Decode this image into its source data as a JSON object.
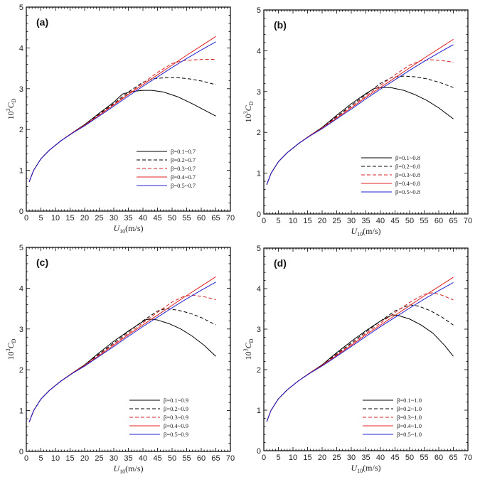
{
  "figure": {
    "description": "Drag coefficient 10^3 C_D versus wind speed U10 for different beta ranges, four panels"
  },
  "chart_data": [
    {
      "type": "line",
      "panel_label": "(a)",
      "xlabel_main": "U",
      "xlabel_sub": "10",
      "xlabel_unit": "(m/s)",
      "ylabel_prefix": "10",
      "ylabel_sup": "3",
      "ylabel_main": "C",
      "ylabel_sub": "D",
      "xlim": [
        0,
        70
      ],
      "ylim": [
        0,
        5
      ],
      "xticks": [
        0,
        5,
        10,
        15,
        20,
        25,
        30,
        35,
        40,
        45,
        50,
        55,
        60,
        65,
        70
      ],
      "yticks": [
        0,
        1,
        2,
        3,
        4,
        5
      ],
      "legend_position": "bottom-right",
      "series": [
        {
          "name": "β=0.1~0.7",
          "color": "#000000",
          "dash": "solid",
          "x": [
            1,
            2.5,
            5,
            8,
            12,
            16,
            20,
            25,
            30,
            33,
            36,
            40,
            43,
            47,
            52,
            57,
            61,
            65
          ],
          "y": [
            0.72,
            1.0,
            1.28,
            1.5,
            1.73,
            1.93,
            2.12,
            2.4,
            2.67,
            2.87,
            2.93,
            2.96,
            2.96,
            2.92,
            2.8,
            2.63,
            2.48,
            2.33
          ]
        },
        {
          "name": "β=0.2~0.7",
          "color": "#000000",
          "dash": "dashed",
          "x": [
            1,
            2.5,
            5,
            8,
            12,
            16,
            20,
            25,
            30,
            35,
            40,
            44,
            48,
            52,
            56,
            60,
            65
          ],
          "y": [
            0.72,
            1.0,
            1.28,
            1.5,
            1.73,
            1.93,
            2.12,
            2.38,
            2.64,
            2.92,
            3.16,
            3.25,
            3.27,
            3.27,
            3.24,
            3.19,
            3.1
          ]
        },
        {
          "name": "β=0.3~0.7",
          "color": "#d42020",
          "dash": "dashed",
          "x": [
            1,
            2.5,
            5,
            8,
            12,
            16,
            20,
            25,
            30,
            35,
            40,
            45,
            50,
            54,
            58,
            62,
            65
          ],
          "y": [
            0.72,
            1.0,
            1.28,
            1.5,
            1.73,
            1.93,
            2.11,
            2.36,
            2.62,
            2.88,
            3.14,
            3.4,
            3.62,
            3.69,
            3.71,
            3.72,
            3.72
          ]
        },
        {
          "name": "β=0.4~0.7",
          "color": "#e02020",
          "dash": "solid",
          "x": [
            1,
            2.5,
            5,
            8,
            12,
            16,
            20,
            25,
            30,
            35,
            40,
            45,
            50,
            55,
            60,
            65
          ],
          "y": [
            0.72,
            1.0,
            1.28,
            1.5,
            1.73,
            1.93,
            2.1,
            2.35,
            2.6,
            2.86,
            3.1,
            3.34,
            3.58,
            3.82,
            4.05,
            4.28
          ]
        },
        {
          "name": "β=0.5~0.7",
          "color": "#2020d0",
          "dash": "solid",
          "x": [
            1,
            2.5,
            5,
            8,
            12,
            16,
            20,
            25,
            30,
            35,
            40,
            45,
            50,
            55,
            60,
            65
          ],
          "y": [
            0.72,
            1.0,
            1.28,
            1.5,
            1.73,
            1.92,
            2.09,
            2.33,
            2.57,
            2.82,
            3.06,
            3.29,
            3.52,
            3.74,
            3.95,
            4.15
          ]
        }
      ]
    },
    {
      "type": "line",
      "panel_label": "(b)",
      "xlabel_main": "U",
      "xlabel_sub": "10",
      "xlabel_unit": "(m/s)",
      "ylabel_prefix": "10",
      "ylabel_sup": "3",
      "ylabel_main": "C",
      "ylabel_sub": "D",
      "xlim": [
        0,
        70
      ],
      "ylim": [
        0,
        5
      ],
      "xticks": [
        0,
        5,
        10,
        15,
        20,
        25,
        30,
        35,
        40,
        45,
        50,
        55,
        60,
        65,
        70
      ],
      "yticks": [
        0,
        1,
        2,
        3,
        4,
        5
      ],
      "legend_position": "bottom-right",
      "series": [
        {
          "name": "β=0.1~0.8",
          "color": "#000000",
          "dash": "solid",
          "x": [
            1,
            2.5,
            5,
            8,
            12,
            16,
            20,
            25,
            30,
            35,
            38,
            41,
            44,
            48,
            52,
            56,
            60,
            65
          ],
          "y": [
            0.72,
            1.0,
            1.28,
            1.5,
            1.73,
            1.93,
            2.12,
            2.42,
            2.7,
            2.95,
            3.08,
            3.1,
            3.09,
            3.03,
            2.92,
            2.78,
            2.6,
            2.33
          ]
        },
        {
          "name": "β=0.2~0.8",
          "color": "#000000",
          "dash": "dashed",
          "x": [
            1,
            2.5,
            5,
            8,
            12,
            16,
            20,
            25,
            30,
            35,
            40,
            44,
            48,
            52,
            56,
            60,
            65
          ],
          "y": [
            0.72,
            1.0,
            1.28,
            1.5,
            1.73,
            1.93,
            2.12,
            2.39,
            2.66,
            2.93,
            3.2,
            3.35,
            3.38,
            3.36,
            3.31,
            3.23,
            3.1
          ]
        },
        {
          "name": "β=0.3~0.8",
          "color": "#d42020",
          "dash": "dashed",
          "x": [
            1,
            2.5,
            5,
            8,
            12,
            16,
            20,
            25,
            30,
            35,
            40,
            45,
            50,
            54,
            57,
            61,
            65
          ],
          "y": [
            0.72,
            1.0,
            1.28,
            1.5,
            1.73,
            1.93,
            2.11,
            2.37,
            2.63,
            2.89,
            3.15,
            3.41,
            3.65,
            3.76,
            3.78,
            3.76,
            3.72
          ]
        },
        {
          "name": "β=0.4~0.8",
          "color": "#e02020",
          "dash": "solid",
          "x": [
            1,
            2.5,
            5,
            8,
            12,
            16,
            20,
            25,
            30,
            35,
            40,
            45,
            50,
            55,
            60,
            65
          ],
          "y": [
            0.72,
            1.0,
            1.28,
            1.5,
            1.73,
            1.93,
            2.1,
            2.35,
            2.6,
            2.86,
            3.1,
            3.34,
            3.58,
            3.82,
            4.05,
            4.28
          ]
        },
        {
          "name": "β=0.5~0.8",
          "color": "#2020d0",
          "dash": "solid",
          "x": [
            1,
            2.5,
            5,
            8,
            12,
            16,
            20,
            25,
            30,
            35,
            40,
            45,
            50,
            55,
            60,
            65
          ],
          "y": [
            0.72,
            1.0,
            1.28,
            1.5,
            1.73,
            1.92,
            2.09,
            2.33,
            2.57,
            2.82,
            3.06,
            3.29,
            3.52,
            3.74,
            3.95,
            4.15
          ]
        }
      ]
    },
    {
      "type": "line",
      "panel_label": "(c)",
      "xlabel_main": "U",
      "xlabel_sub": "10",
      "xlabel_unit": "(m/s)",
      "ylabel_prefix": "10",
      "ylabel_sup": "3",
      "ylabel_main": "C",
      "ylabel_sub": "D",
      "xlim": [
        0,
        70
      ],
      "ylim": [
        0,
        5
      ],
      "xticks": [
        0,
        5,
        10,
        15,
        20,
        25,
        30,
        35,
        40,
        45,
        50,
        55,
        60,
        65,
        70
      ],
      "yticks": [
        0,
        1,
        2,
        3,
        4,
        5
      ],
      "legend_position": "bottom-right",
      "series": [
        {
          "name": "β=0.1~0.9",
          "color": "#000000",
          "dash": "solid",
          "x": [
            1,
            2.5,
            5,
            8,
            12,
            16,
            20,
            25,
            30,
            35,
            41,
            43,
            45,
            49,
            53,
            57,
            61,
            65
          ],
          "y": [
            0.72,
            1.0,
            1.28,
            1.5,
            1.73,
            1.93,
            2.12,
            2.42,
            2.7,
            2.95,
            3.23,
            3.24,
            3.22,
            3.13,
            3.0,
            2.82,
            2.6,
            2.33
          ]
        },
        {
          "name": "β=0.2~0.9",
          "color": "#000000",
          "dash": "dashed",
          "x": [
            1,
            2.5,
            5,
            8,
            12,
            16,
            20,
            25,
            30,
            35,
            40,
            45,
            48,
            52,
            56,
            60,
            65
          ],
          "y": [
            0.72,
            1.0,
            1.28,
            1.5,
            1.73,
            1.93,
            2.12,
            2.39,
            2.66,
            2.93,
            3.2,
            3.44,
            3.5,
            3.46,
            3.39,
            3.28,
            3.1
          ]
        },
        {
          "name": "β=0.3~0.9",
          "color": "#d42020",
          "dash": "dashed",
          "x": [
            1,
            2.5,
            5,
            8,
            12,
            16,
            20,
            25,
            30,
            35,
            40,
            45,
            50,
            54,
            57,
            61,
            65
          ],
          "y": [
            0.72,
            1.0,
            1.28,
            1.5,
            1.73,
            1.93,
            2.11,
            2.37,
            2.63,
            2.89,
            3.15,
            3.41,
            3.66,
            3.8,
            3.83,
            3.79,
            3.72
          ]
        },
        {
          "name": "β=0.4~0.9",
          "color": "#e02020",
          "dash": "solid",
          "x": [
            1,
            2.5,
            5,
            8,
            12,
            16,
            20,
            25,
            30,
            35,
            40,
            45,
            50,
            55,
            60,
            65
          ],
          "y": [
            0.72,
            1.0,
            1.28,
            1.5,
            1.73,
            1.93,
            2.1,
            2.35,
            2.6,
            2.86,
            3.1,
            3.34,
            3.58,
            3.82,
            4.05,
            4.28
          ]
        },
        {
          "name": "β=0.5~0.9",
          "color": "#2020d0",
          "dash": "solid",
          "x": [
            1,
            2.5,
            5,
            8,
            12,
            16,
            20,
            25,
            30,
            35,
            40,
            45,
            50,
            55,
            60,
            65
          ],
          "y": [
            0.72,
            1.0,
            1.28,
            1.5,
            1.73,
            1.92,
            2.09,
            2.33,
            2.57,
            2.82,
            3.06,
            3.29,
            3.52,
            3.74,
            3.95,
            4.15
          ]
        }
      ]
    },
    {
      "type": "line",
      "panel_label": "(d)",
      "xlabel_main": "U",
      "xlabel_sub": "10",
      "xlabel_unit": "(m/s)",
      "ylabel_prefix": "10",
      "ylabel_sup": "3",
      "ylabel_main": "C",
      "ylabel_sub": "D",
      "xlim": [
        0,
        70
      ],
      "ylim": [
        0,
        5
      ],
      "xticks": [
        0,
        5,
        10,
        15,
        20,
        25,
        30,
        35,
        40,
        45,
        50,
        55,
        60,
        65,
        70
      ],
      "yticks": [
        0,
        1,
        2,
        3,
        4,
        5
      ],
      "legend_position": "bottom-right",
      "series": [
        {
          "name": "β=0.1~1.0",
          "color": "#000000",
          "dash": "solid",
          "x": [
            1,
            2.5,
            5,
            8,
            12,
            16,
            20,
            25,
            30,
            35,
            40,
            44,
            46,
            50,
            54,
            58,
            62,
            65
          ],
          "y": [
            0.72,
            1.0,
            1.28,
            1.5,
            1.73,
            1.93,
            2.12,
            2.42,
            2.7,
            2.96,
            3.2,
            3.35,
            3.34,
            3.25,
            3.1,
            2.9,
            2.6,
            2.33
          ]
        },
        {
          "name": "β=0.2~1.0",
          "color": "#000000",
          "dash": "dashed",
          "x": [
            1,
            2.5,
            5,
            8,
            12,
            16,
            20,
            25,
            30,
            35,
            40,
            45,
            50,
            53,
            57,
            61,
            65
          ],
          "y": [
            0.72,
            1.0,
            1.28,
            1.5,
            1.73,
            1.93,
            2.12,
            2.39,
            2.66,
            2.93,
            3.2,
            3.45,
            3.6,
            3.57,
            3.46,
            3.3,
            3.1
          ]
        },
        {
          "name": "β=0.3~1.0",
          "color": "#d42020",
          "dash": "dashed",
          "x": [
            1,
            2.5,
            5,
            8,
            12,
            16,
            20,
            25,
            30,
            35,
            40,
            45,
            50,
            55,
            58,
            61,
            65
          ],
          "y": [
            0.72,
            1.0,
            1.28,
            1.5,
            1.73,
            1.93,
            2.11,
            2.37,
            2.63,
            2.89,
            3.15,
            3.41,
            3.66,
            3.86,
            3.9,
            3.84,
            3.72
          ]
        },
        {
          "name": "β=0.4~1.0",
          "color": "#e02020",
          "dash": "solid",
          "x": [
            1,
            2.5,
            5,
            8,
            12,
            16,
            20,
            25,
            30,
            35,
            40,
            45,
            50,
            55,
            60,
            65
          ],
          "y": [
            0.72,
            1.0,
            1.28,
            1.5,
            1.73,
            1.93,
            2.1,
            2.35,
            2.6,
            2.86,
            3.1,
            3.34,
            3.58,
            3.82,
            4.05,
            4.28
          ]
        },
        {
          "name": "β=0.5~1.0",
          "color": "#2020d0",
          "dash": "solid",
          "x": [
            1,
            2.5,
            5,
            8,
            12,
            16,
            20,
            25,
            30,
            35,
            40,
            45,
            50,
            55,
            60,
            65
          ],
          "y": [
            0.72,
            1.0,
            1.28,
            1.5,
            1.73,
            1.92,
            2.09,
            2.33,
            2.57,
            2.82,
            3.06,
            3.29,
            3.52,
            3.74,
            3.95,
            4.15
          ]
        }
      ]
    }
  ]
}
